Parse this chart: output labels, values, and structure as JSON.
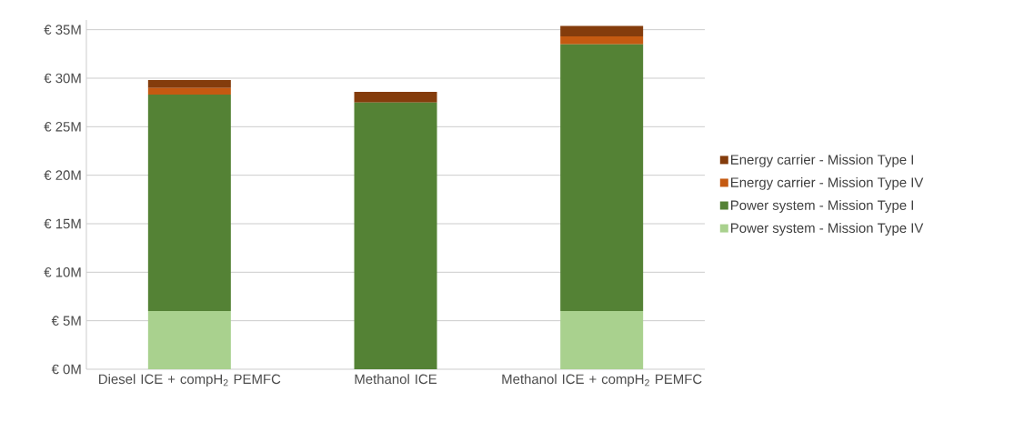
{
  "chart_data": {
    "type": "bar",
    "stacked": true,
    "categories": [
      "Diesel ICE + compH$_{2}$ PEMFC",
      "Methanol ICE",
      "Methanol ICE + compH$_{2}$ PEMFC"
    ],
    "series": [
      {
        "name": "Power system - Mission Type IV",
        "color": "#a9d18e",
        "values": [
          6.0,
          0,
          6.0
        ]
      },
      {
        "name": "Power system - Mission Type I",
        "color": "#548235",
        "values": [
          22.3,
          27.5,
          27.5
        ]
      },
      {
        "name": "Energy carrier - Mission Type IV",
        "color": "#c55a11",
        "values": [
          0.7,
          0,
          0.8
        ]
      },
      {
        "name": "Energy carrier - Mission Type I",
        "color": "#843c0c",
        "values": [
          0.8,
          1.1,
          1.1
        ]
      }
    ],
    "ylim": [
      0,
      36
    ],
    "yticks": [
      {
        "value": 0,
        "label": "€ 0M"
      },
      {
        "value": 5,
        "label": "€ 5M"
      },
      {
        "value": 10,
        "label": "€ 10M"
      },
      {
        "value": 15,
        "label": "€ 15M"
      },
      {
        "value": 20,
        "label": "€ 20M"
      },
      {
        "value": 25,
        "label": "€ 25M"
      },
      {
        "value": 30,
        "label": "€ 30M"
      },
      {
        "value": 35,
        "label": "€ 35M"
      }
    ],
    "grid": "y",
    "legend": "right"
  }
}
